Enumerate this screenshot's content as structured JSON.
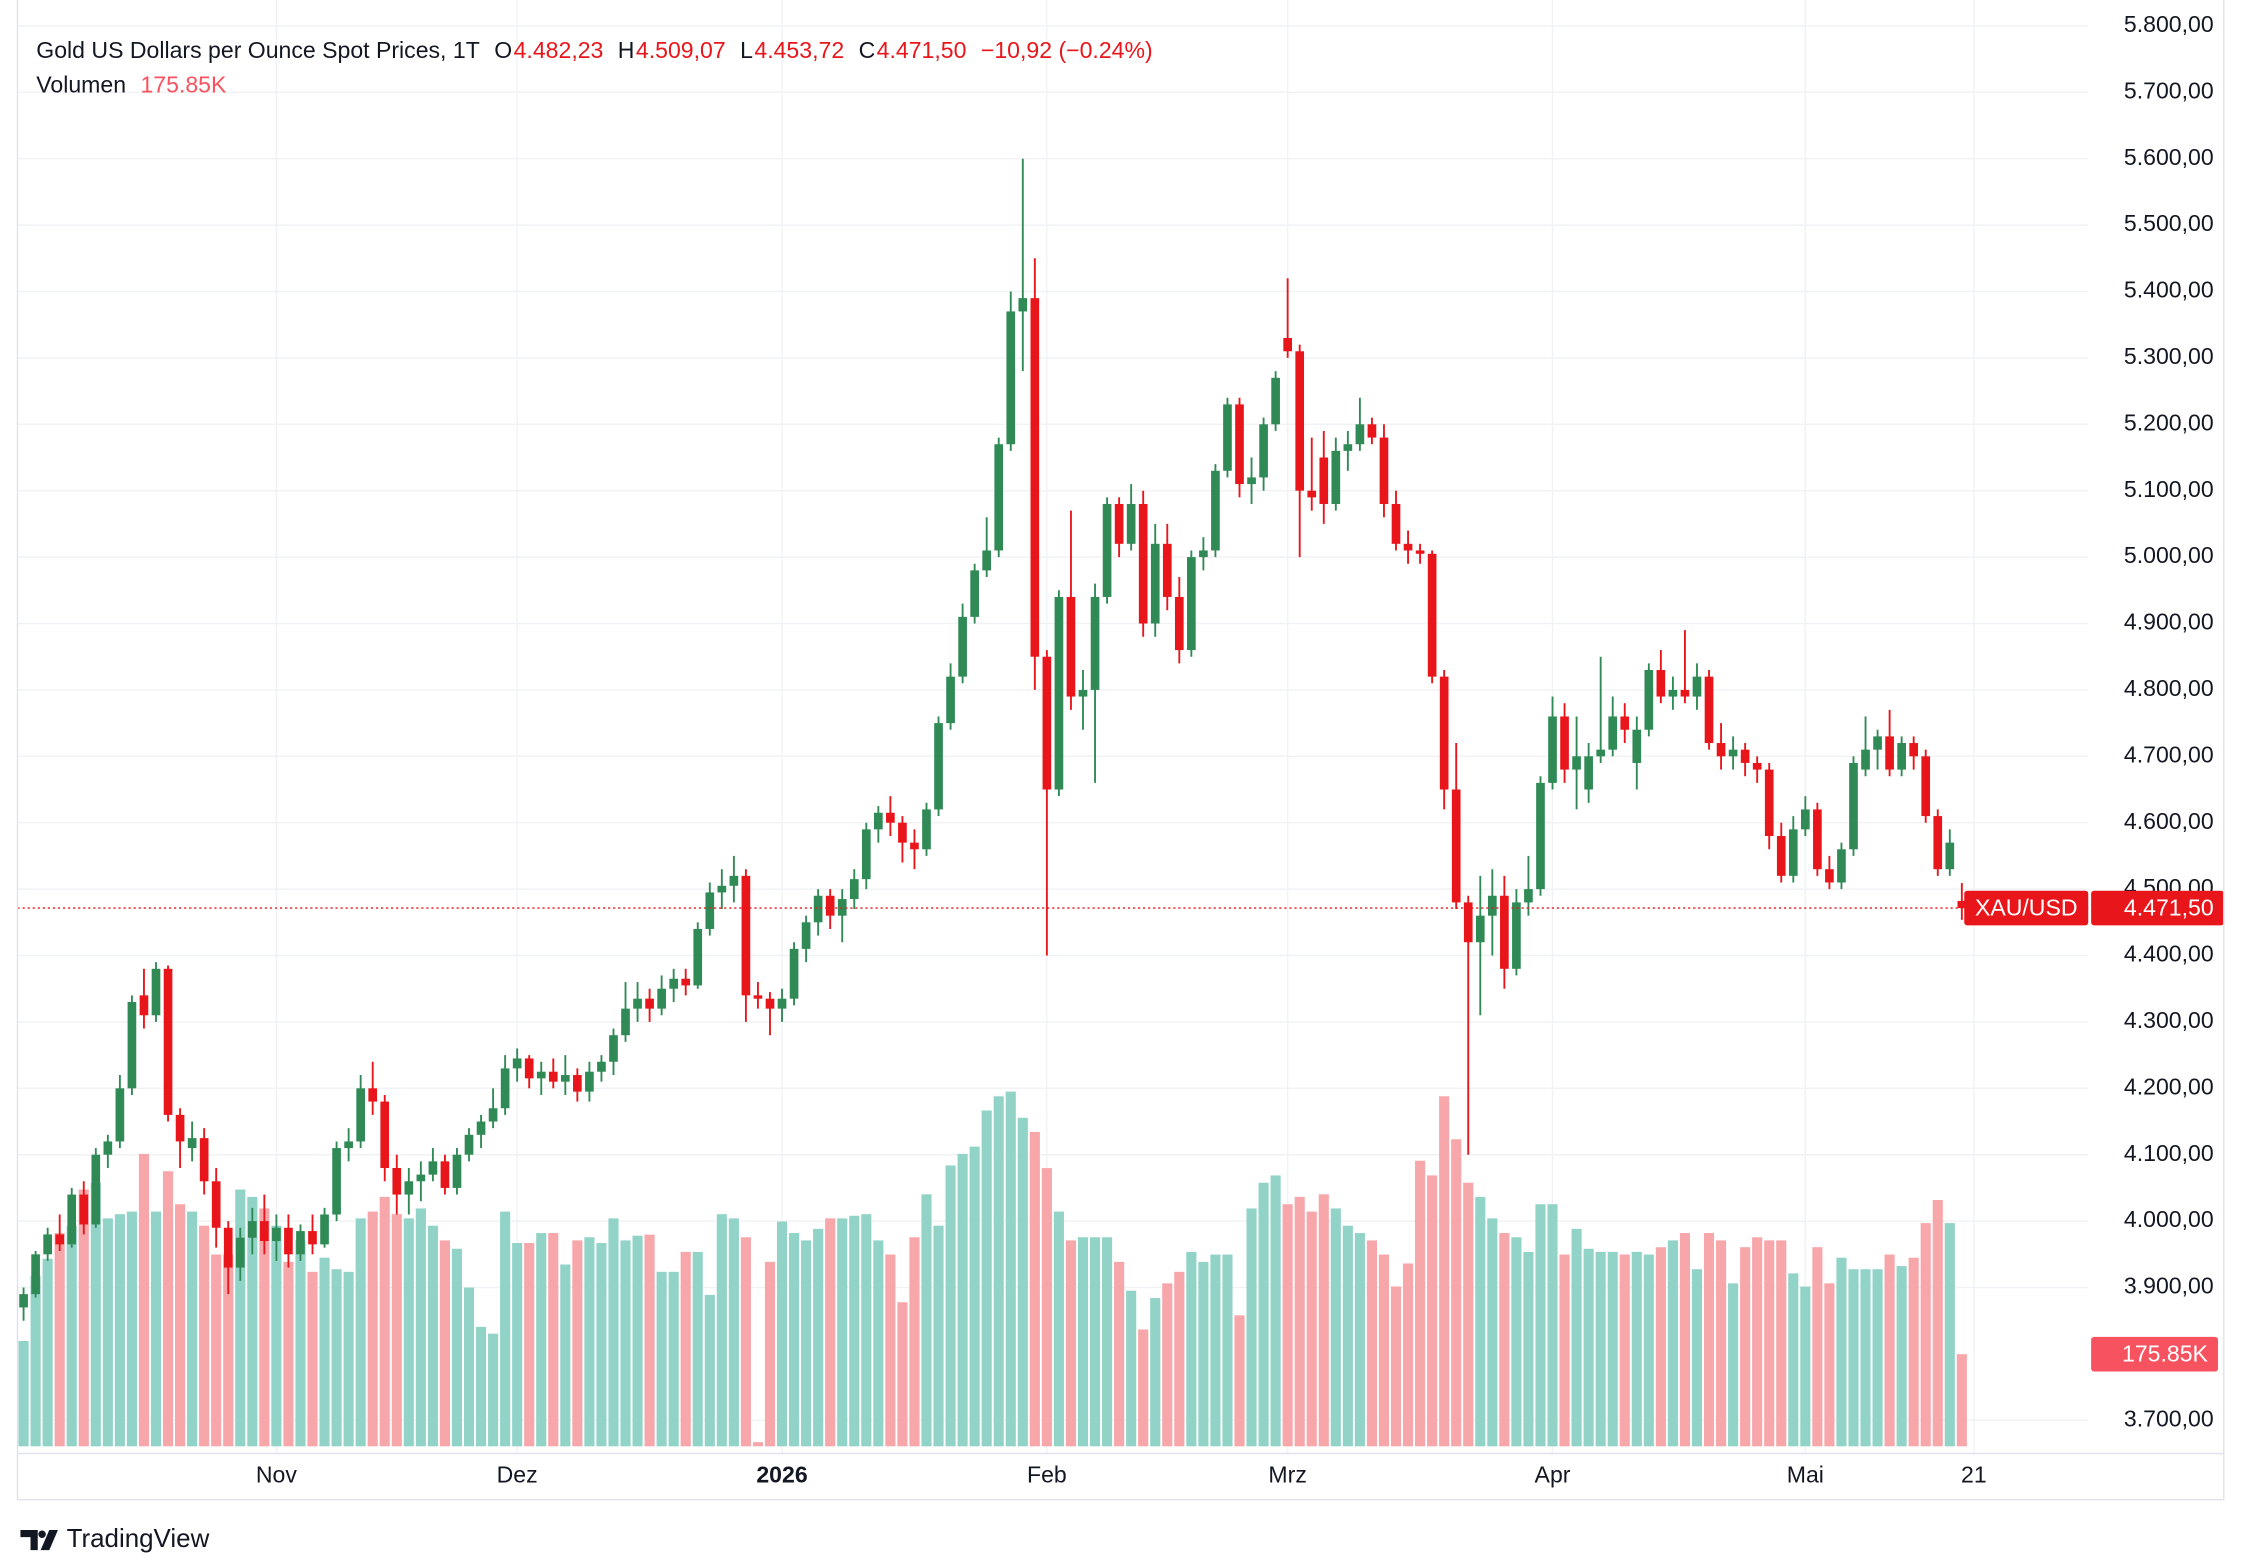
{
  "chart_data": {
    "type": "candlestick",
    "header": {
      "symbol": "Gold US Dollars per Ounce Spot Prices, 1T",
      "open_key": "O",
      "open": "4.482,23",
      "high_key": "H",
      "high": "4.509,07",
      "low_key": "L",
      "low": "4.453,72",
      "close_key": "C",
      "close": "4.471,50",
      "change": "−10,92 (−0.24%)"
    },
    "symbol_badge": "XAU/USD",
    "branding": "TradingView",
    "up_color": "#2f8a55",
    "down_color": "#e8161b",
    "ylim": [
      3650,
      5839
    ],
    "yticks": [
      {
        "value": 3700,
        "label": "3.700,00"
      },
      {
        "value": 3900,
        "label": "3.900,00"
      },
      {
        "value": 4000,
        "label": "4.000,00"
      },
      {
        "value": 4100,
        "label": "4.100,00"
      },
      {
        "value": 4200,
        "label": "4.200,00"
      },
      {
        "value": 4300,
        "label": "4.300,00"
      },
      {
        "value": 4400,
        "label": "4.400,00"
      },
      {
        "value": 4500,
        "label": "4.500,00"
      },
      {
        "value": 4600,
        "label": "4.600,00"
      },
      {
        "value": 4700,
        "label": "4.700,00"
      },
      {
        "value": 4800,
        "label": "4.800,00"
      },
      {
        "value": 4900,
        "label": "4.900,00"
      },
      {
        "value": 5000,
        "label": "5.000,00"
      },
      {
        "value": 5100,
        "label": "5.100,00"
      },
      {
        "value": 5200,
        "label": "5.200,00"
      },
      {
        "value": 5300,
        "label": "5.300,00"
      },
      {
        "value": 5400,
        "label": "5.400,00"
      },
      {
        "value": 5500,
        "label": "5.500,00"
      },
      {
        "value": 5600,
        "label": "5.600,00"
      },
      {
        "value": 5700,
        "label": "5.700,00"
      },
      {
        "value": 5800,
        "label": "5.800,00"
      }
    ],
    "xlim": [
      -0.5,
      171.5
    ],
    "xticks": [
      {
        "value": 21,
        "label": "Nov"
      },
      {
        "value": 41,
        "label": "Dez"
      },
      {
        "value": 63,
        "label": "2026"
      },
      {
        "value": 85,
        "label": "Feb"
      },
      {
        "value": 105,
        "label": "Mrz"
      },
      {
        "value": 127,
        "label": "Apr"
      },
      {
        "value": 148,
        "label": "Mai"
      },
      {
        "value": 162,
        "label": "21"
      }
    ],
    "grid": true,
    "ohlc": [
      [
        3870,
        3900,
        3850,
        3890
      ],
      [
        3890,
        3955,
        3885,
        3950
      ],
      [
        3950,
        3990,
        3940,
        3980
      ],
      [
        3980,
        4010,
        3955,
        3965
      ],
      [
        3965,
        4050,
        3960,
        4040
      ],
      [
        4040,
        4060,
        3980,
        3995
      ],
      [
        3995,
        4110,
        3990,
        4100
      ],
      [
        4100,
        4130,
        4080,
        4120
      ],
      [
        4120,
        4220,
        4110,
        4200
      ],
      [
        4200,
        4340,
        4190,
        4330
      ],
      [
        4340,
        4380,
        4290,
        4310
      ],
      [
        4310,
        4390,
        4300,
        4380
      ],
      [
        4380,
        4385,
        4150,
        4160
      ],
      [
        4160,
        4170,
        4080,
        4120
      ],
      [
        4110,
        4150,
        4090,
        4125
      ],
      [
        4125,
        4140,
        4040,
        4060
      ],
      [
        4060,
        4080,
        3960,
        3990
      ],
      [
        3990,
        4000,
        3890,
        3930
      ],
      [
        3930,
        3990,
        3910,
        3975
      ],
      [
        3975,
        4020,
        3950,
        4000
      ],
      [
        4000,
        4040,
        3950,
        3970
      ],
      [
        3970,
        4010,
        3940,
        3990
      ],
      [
        3990,
        4010,
        3930,
        3950
      ],
      [
        3950,
        3995,
        3940,
        3985
      ],
      [
        3985,
        4010,
        3950,
        3965
      ],
      [
        3965,
        4020,
        3960,
        4010
      ],
      [
        4010,
        4120,
        4000,
        4110
      ],
      [
        4110,
        4140,
        4090,
        4120
      ],
      [
        4120,
        4220,
        4110,
        4200
      ],
      [
        4200,
        4240,
        4160,
        4180
      ],
      [
        4180,
        4190,
        4060,
        4080
      ],
      [
        4080,
        4100,
        4010,
        4040
      ],
      [
        4040,
        4080,
        4010,
        4060
      ],
      [
        4060,
        4090,
        4030,
        4070
      ],
      [
        4070,
        4110,
        4060,
        4090
      ],
      [
        4090,
        4100,
        4040,
        4050
      ],
      [
        4050,
        4110,
        4040,
        4100
      ],
      [
        4100,
        4140,
        4090,
        4130
      ],
      [
        4130,
        4160,
        4110,
        4150
      ],
      [
        4150,
        4200,
        4140,
        4170
      ],
      [
        4170,
        4250,
        4160,
        4230
      ],
      [
        4230,
        4260,
        4210,
        4245
      ],
      [
        4245,
        4250,
        4200,
        4215
      ],
      [
        4215,
        4240,
        4190,
        4225
      ],
      [
        4225,
        4245,
        4200,
        4210
      ],
      [
        4210,
        4250,
        4190,
        4220
      ],
      [
        4220,
        4230,
        4180,
        4195
      ],
      [
        4195,
        4240,
        4180,
        4225
      ],
      [
        4225,
        4250,
        4210,
        4240
      ],
      [
        4240,
        4290,
        4220,
        4280
      ],
      [
        4280,
        4360,
        4270,
        4320
      ],
      [
        4320,
        4360,
        4300,
        4335
      ],
      [
        4335,
        4350,
        4300,
        4320
      ],
      [
        4320,
        4370,
        4310,
        4350
      ],
      [
        4350,
        4380,
        4330,
        4365
      ],
      [
        4365,
        4380,
        4340,
        4355
      ],
      [
        4355,
        4450,
        4350,
        4440
      ],
      [
        4440,
        4510,
        4430,
        4495
      ],
      [
        4495,
        4530,
        4470,
        4505
      ],
      [
        4505,
        4550,
        4480,
        4520
      ],
      [
        4520,
        4530,
        4300,
        4340
      ],
      [
        4340,
        4360,
        4320,
        4335
      ],
      [
        4335,
        4345,
        4280,
        4320
      ],
      [
        4320,
        4350,
        4300,
        4335
      ],
      [
        4335,
        4420,
        4325,
        4410
      ],
      [
        4410,
        4460,
        4390,
        4450
      ],
      [
        4450,
        4500,
        4430,
        4490
      ],
      [
        4490,
        4500,
        4440,
        4460
      ],
      [
        4460,
        4500,
        4420,
        4485
      ],
      [
        4485,
        4530,
        4470,
        4515
      ],
      [
        4515,
        4600,
        4500,
        4590
      ],
      [
        4590,
        4625,
        4570,
        4615
      ],
      [
        4615,
        4640,
        4580,
        4600
      ],
      [
        4600,
        4610,
        4540,
        4570
      ],
      [
        4570,
        4590,
        4530,
        4560
      ],
      [
        4560,
        4630,
        4550,
        4620
      ],
      [
        4620,
        4760,
        4610,
        4750
      ],
      [
        4750,
        4840,
        4740,
        4820
      ],
      [
        4820,
        4930,
        4810,
        4910
      ],
      [
        4910,
        4990,
        4900,
        4980
      ],
      [
        4980,
        5060,
        4970,
        5010
      ],
      [
        5010,
        5180,
        5000,
        5170
      ],
      [
        5170,
        5400,
        5160,
        5370
      ],
      [
        5370,
        5600,
        5280,
        5390
      ],
      [
        5390,
        5450,
        4800,
        4850
      ],
      [
        4850,
        4860,
        4400,
        4650
      ],
      [
        4650,
        4950,
        4640,
        4940
      ],
      [
        4940,
        5070,
        4770,
        4790
      ],
      [
        4790,
        4830,
        4740,
        4800
      ],
      [
        4800,
        4960,
        4660,
        4940
      ],
      [
        4940,
        5090,
        4930,
        5080
      ],
      [
        5080,
        5090,
        5000,
        5020
      ],
      [
        5020,
        5110,
        5010,
        5080
      ],
      [
        5080,
        5100,
        4880,
        4900
      ],
      [
        4900,
        5050,
        4880,
        5020
      ],
      [
        5020,
        5050,
        4920,
        4940
      ],
      [
        4940,
        4970,
        4840,
        4860
      ],
      [
        4860,
        5010,
        4850,
        5000
      ],
      [
        5000,
        5030,
        4980,
        5010
      ],
      [
        5010,
        5140,
        5000,
        5130
      ],
      [
        5130,
        5240,
        5120,
        5230
      ],
      [
        5230,
        5240,
        5090,
        5110
      ],
      [
        5110,
        5150,
        5080,
        5120
      ],
      [
        5120,
        5210,
        5100,
        5200
      ],
      [
        5200,
        5280,
        5190,
        5270
      ],
      [
        5330,
        5420,
        5300,
        5310
      ],
      [
        5310,
        5320,
        5000,
        5100
      ],
      [
        5100,
        5180,
        5070,
        5090
      ],
      [
        5150,
        5190,
        5050,
        5080
      ],
      [
        5080,
        5180,
        5070,
        5160
      ],
      [
        5160,
        5190,
        5130,
        5170
      ],
      [
        5170,
        5240,
        5160,
        5200
      ],
      [
        5200,
        5210,
        5170,
        5180
      ],
      [
        5180,
        5200,
        5060,
        5080
      ],
      [
        5080,
        5100,
        5010,
        5020
      ],
      [
        5020,
        5040,
        4990,
        5010
      ],
      [
        5010,
        5020,
        4990,
        5005
      ],
      [
        5005,
        5010,
        4810,
        4820
      ],
      [
        4820,
        4830,
        4620,
        4650
      ],
      [
        4650,
        4720,
        4470,
        4480
      ],
      [
        4480,
        4490,
        4100,
        4420
      ],
      [
        4420,
        4520,
        4310,
        4460
      ],
      [
        4460,
        4530,
        4400,
        4490
      ],
      [
        4490,
        4520,
        4350,
        4380
      ],
      [
        4380,
        4500,
        4370,
        4480
      ],
      [
        4480,
        4550,
        4460,
        4500
      ],
      [
        4500,
        4670,
        4490,
        4660
      ],
      [
        4660,
        4790,
        4650,
        4760
      ],
      [
        4760,
        4780,
        4660,
        4680
      ],
      [
        4680,
        4760,
        4620,
        4700
      ],
      [
        4650,
        4720,
        4630,
        4700
      ],
      [
        4700,
        4850,
        4690,
        4710
      ],
      [
        4710,
        4790,
        4700,
        4760
      ],
      [
        4760,
        4780,
        4720,
        4740
      ],
      [
        4690,
        4760,
        4650,
        4740
      ],
      [
        4740,
        4840,
        4730,
        4830
      ],
      [
        4830,
        4860,
        4780,
        4790
      ],
      [
        4790,
        4820,
        4770,
        4800
      ],
      [
        4800,
        4890,
        4780,
        4790
      ],
      [
        4790,
        4840,
        4770,
        4820
      ],
      [
        4820,
        4830,
        4710,
        4720
      ],
      [
        4720,
        4750,
        4680,
        4700
      ],
      [
        4700,
        4730,
        4680,
        4710
      ],
      [
        4710,
        4720,
        4670,
        4690
      ],
      [
        4690,
        4700,
        4660,
        4680
      ],
      [
        4680,
        4690,
        4560,
        4580
      ],
      [
        4580,
        4600,
        4510,
        4520
      ],
      [
        4520,
        4610,
        4510,
        4590
      ],
      [
        4590,
        4640,
        4580,
        4620
      ],
      [
        4620,
        4630,
        4520,
        4530
      ],
      [
        4530,
        4550,
        4500,
        4510
      ],
      [
        4510,
        4570,
        4500,
        4560
      ],
      [
        4560,
        4700,
        4550,
        4690
      ],
      [
        4680,
        4760,
        4670,
        4710
      ],
      [
        4710,
        4740,
        4680,
        4730
      ],
      [
        4730,
        4770,
        4670,
        4680
      ],
      [
        4680,
        4730,
        4670,
        4720
      ],
      [
        4720,
        4730,
        4680,
        4700
      ],
      [
        4700,
        4710,
        4600,
        4610
      ],
      [
        4610,
        4620,
        4520,
        4530
      ],
      [
        4530,
        4590,
        4520,
        4570
      ],
      [
        4482.23,
        4509.07,
        4453.72,
        4471.5
      ]
    ],
    "volume": {
      "name": "Volumen",
      "up_color": "#92d3c8",
      "down_color": "#f7a6aa",
      "label_color": "#f7525f",
      "last_value_label": "175.85K",
      "values": [
        201,
        325,
        358,
        407,
        421,
        490,
        503,
        435,
        443,
        448,
        558,
        448,
        525,
        462,
        448,
        421,
        366,
        366,
        490,
        476,
        454,
        421,
        352,
        393,
        333,
        360,
        338,
        333,
        435,
        448,
        476,
        443,
        435,
        454,
        421,
        393,
        377,
        303,
        228,
        215,
        448,
        388,
        388,
        407,
        407,
        347,
        393,
        399,
        388,
        435,
        393,
        402,
        404,
        333,
        333,
        371,
        371,
        289,
        443,
        435,
        399,
        8,
        352,
        429,
        407,
        393,
        415,
        435,
        435,
        440,
        443,
        393,
        366,
        275,
        399,
        481,
        421,
        536,
        558,
        572,
        641,
        668,
        677,
        627,
        600,
        531,
        448,
        393,
        399,
        399,
        399,
        352,
        297,
        223,
        283,
        311,
        333,
        371,
        352,
        366,
        366,
        250,
        454,
        503,
        517,
        462,
        476,
        448,
        481,
        454,
        421,
        407,
        393,
        366,
        305,
        349,
        545,
        517,
        668,
        586,
        503,
        476,
        435,
        407,
        399,
        371,
        462,
        462,
        366,
        415,
        377,
        371,
        371,
        366,
        371,
        366,
        380,
        393,
        407,
        338,
        407,
        393,
        311,
        380,
        399,
        393,
        393,
        330,
        305,
        380,
        311,
        360,
        338,
        338,
        338,
        366,
        344,
        360,
        426,
        470,
        426,
        175.85
      ]
    }
  }
}
